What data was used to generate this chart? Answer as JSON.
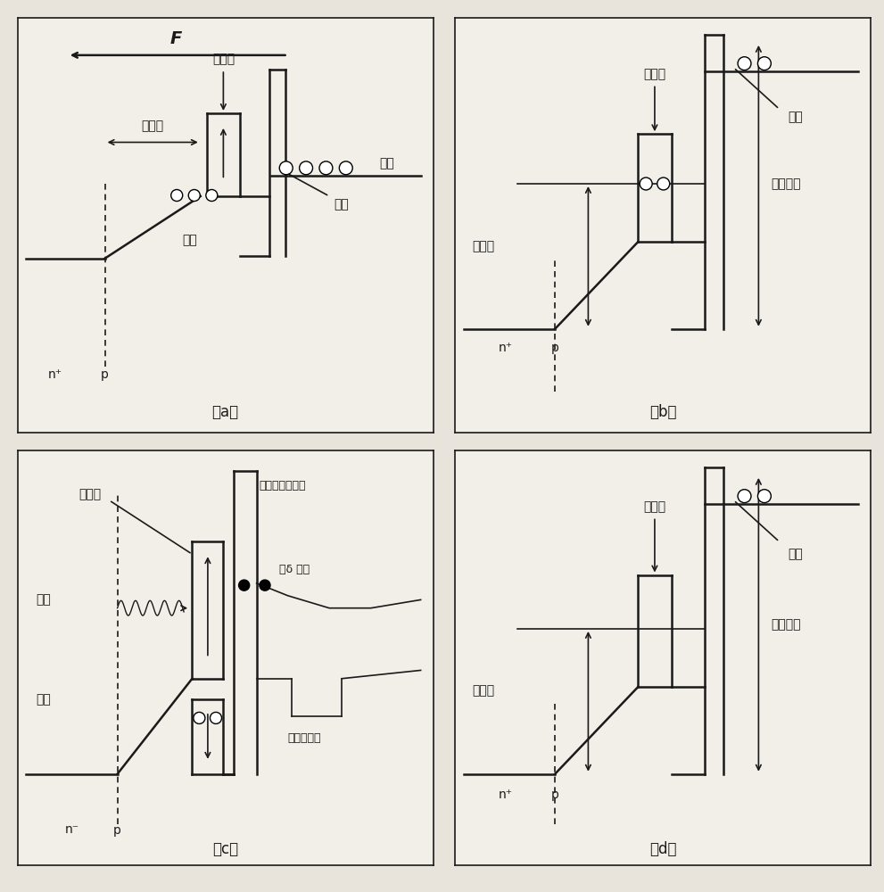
{
  "bg_color": "#e8e4dc",
  "panel_bg": "#f2efe8",
  "line_color": "#1a1a1a",
  "lw_main": 1.8,
  "lw_thin": 1.2,
  "labels": {
    "a_F": "F",
    "a_qd": "量子点",
    "a_depletion": "耗尽区",
    "a_capture": "信获",
    "a_hole": "空穴",
    "a_valence": "价带",
    "a_np": "n⁺",
    "a_p": "p",
    "b_qd": "量子点",
    "b_confinement": "限制能",
    "b_hole": "空穴",
    "b_capture_barrier": "信获势帢",
    "b_np": "n⁺",
    "b_p": "p",
    "c_qd": "量子点",
    "c_rste": "实空间转移电子",
    "c_photon": "光子",
    "c_hole": "空穴",
    "c_si_delta": "硅δ 汻杂",
    "c_2deg": "二维电子气",
    "c_nm": "n⁻",
    "c_p": "p",
    "d_qd": "量子点",
    "d_confinement": "限制能",
    "d_hole": "空穴",
    "d_capture_barrier": "信获势帢",
    "d_np": "n⁺",
    "d_p": "p",
    "label_a": "（a）",
    "label_b": "（b）",
    "label_c": "（c）",
    "label_d": "（d）"
  }
}
